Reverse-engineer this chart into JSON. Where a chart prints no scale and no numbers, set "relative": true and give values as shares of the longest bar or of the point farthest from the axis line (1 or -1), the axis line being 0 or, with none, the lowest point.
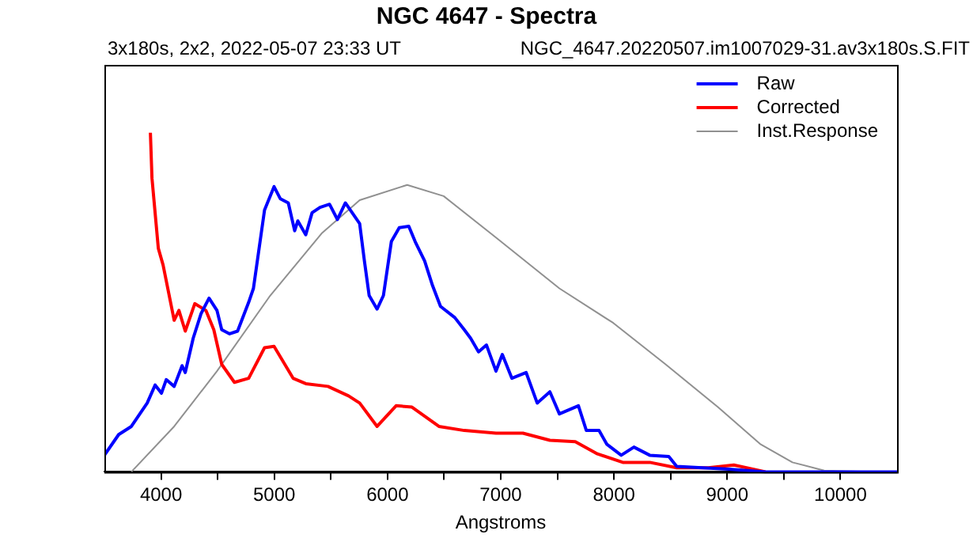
{
  "chart_data": {
    "type": "line",
    "title": "NGC 4647 - Spectra",
    "subtitle": "3x180s, 2x2, 2022-05-07 23:33 UT",
    "annotations": [
      "NGC_4647.20220507.im1007029-31.av3x180s.S.FIT"
    ],
    "xlabel": "Angstroms",
    "relative": true,
    "xlim": [
      3500,
      10500
    ],
    "xticks": [
      4000,
      {
        "value": 4500,
        "label": null
      },
      5000,
      {
        "value": 5500,
        "label": null
      },
      6000,
      {
        "value": 6500,
        "label": null
      },
      7000,
      {
        "value": 7500,
        "label": null
      },
      8000,
      {
        "value": 8500,
        "label": null
      },
      9000,
      {
        "value": 9500,
        "label": null
      },
      10000
    ],
    "grid": false,
    "legend": "top right",
    "marker": "none",
    "line_style": "solid",
    "series": [
      {
        "name": "Raw",
        "color": "#0000ff",
        "x": [
          3500,
          3626,
          3738,
          3878,
          3948,
          4004,
          4046,
          4116,
          4186,
          4214,
          4284,
          4354,
          4424,
          4494,
          4536,
          4606,
          4676,
          4774,
          4816,
          4914,
          4998,
          5054,
          5124,
          5180,
          5208,
          5278,
          5334,
          5404,
          5488,
          5558,
          5628,
          5754,
          5796,
          5838,
          5908,
          5964,
          6034,
          6104,
          6188,
          6244,
          6328,
          6398,
          6468,
          6594,
          6678,
          6734,
          6804,
          6874,
          6958,
          7014,
          7098,
          7224,
          7322,
          7434,
          7518,
          7686,
          7756,
          7868,
          7938,
          8064,
          8176,
          8316,
          8484,
          8554,
          8778,
          9016,
          9338,
          10500
        ],
        "values": [
          0.049,
          0.11,
          0.134,
          0.203,
          0.256,
          0.232,
          0.272,
          0.252,
          0.313,
          0.293,
          0.394,
          0.467,
          0.512,
          0.476,
          0.419,
          0.407,
          0.415,
          0.5,
          0.541,
          0.772,
          0.841,
          0.805,
          0.793,
          0.711,
          0.74,
          0.699,
          0.764,
          0.78,
          0.789,
          0.744,
          0.793,
          0.732,
          0.622,
          0.52,
          0.48,
          0.52,
          0.679,
          0.72,
          0.724,
          0.679,
          0.622,
          0.549,
          0.488,
          0.455,
          0.419,
          0.394,
          0.354,
          0.374,
          0.297,
          0.346,
          0.276,
          0.293,
          0.203,
          0.236,
          0.171,
          0.195,
          0.122,
          0.122,
          0.081,
          0.049,
          0.073,
          0.049,
          0.045,
          0.016,
          0.012,
          0.008,
          0,
          0
        ]
      },
      {
        "name": "Corrected",
        "color": "#ff0000",
        "x": [
          3906,
          3920,
          3976,
          4018,
          4116,
          4158,
          4214,
          4298,
          4396,
          4466,
          4536,
          4648,
          4774,
          4914,
          4998,
          5166,
          5278,
          5474,
          5656,
          5754,
          5908,
          6076,
          6216,
          6454,
          6678,
          6958,
          7196,
          7434,
          7658,
          7854,
          8078,
          8316,
          8554,
          8834,
          9058,
          9338
        ],
        "values": [
          1.0,
          0.866,
          0.659,
          0.61,
          0.447,
          0.476,
          0.415,
          0.496,
          0.476,
          0.419,
          0.317,
          0.264,
          0.276,
          0.366,
          0.37,
          0.276,
          0.26,
          0.252,
          0.224,
          0.203,
          0.134,
          0.195,
          0.191,
          0.134,
          0.122,
          0.114,
          0.114,
          0.093,
          0.089,
          0.053,
          0.028,
          0.028,
          0.012,
          0.012,
          0.02,
          0
        ]
      },
      {
        "name": "Inst.Response",
        "color": "#909090",
        "x": [
          3738,
          4116,
          4494,
          4956,
          5418,
          5754,
          6174,
          6496,
          6958,
          7518,
          7994,
          8456,
          8918,
          9296,
          9576,
          9856,
          10318
        ],
        "values": [
          0,
          0.134,
          0.297,
          0.516,
          0.703,
          0.801,
          0.846,
          0.813,
          0.691,
          0.541,
          0.439,
          0.317,
          0.191,
          0.081,
          0.028,
          0.004,
          0
        ]
      }
    ]
  }
}
